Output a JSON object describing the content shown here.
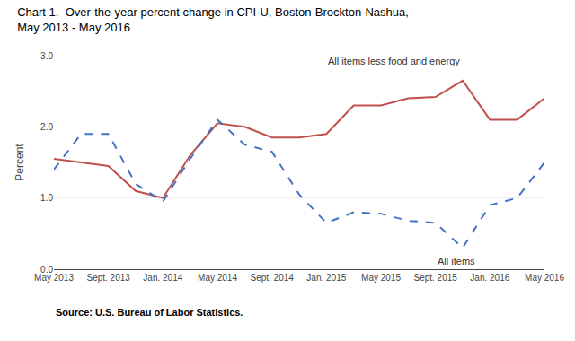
{
  "chart_data": {
    "type": "line",
    "title": "Chart 1.  Over-the-year percent change in CPI-U, Boston-Brockton-Nashua,",
    "subtitle": "May 2013 - May 2016",
    "ylabel": "Percent",
    "source": "Source: U.S. Bureau of Labor Statistics.",
    "categories": [
      "May 2013",
      null,
      "Sept. 2013",
      null,
      "Jan. 2014",
      null,
      "May 2014",
      null,
      "Sept. 2014",
      null,
      "Jan. 2015",
      null,
      "May 2015",
      null,
      "Sept. 2015",
      null,
      "Jan. 2016",
      null,
      "May 2016"
    ],
    "series": [
      {
        "name": "All items less food and energy",
        "color": "#C0504D",
        "line_style": "solid",
        "values": [
          1.55,
          1.5,
          1.45,
          1.1,
          1.0,
          1.6,
          2.05,
          2.0,
          1.85,
          1.85,
          1.9,
          2.3,
          2.3,
          2.4,
          2.42,
          2.65,
          2.1,
          2.1,
          2.4
        ]
      },
      {
        "name": "All items",
        "color": "#4472C4",
        "line_style": "dashed",
        "values": [
          1.4,
          1.9,
          1.9,
          1.2,
          0.95,
          1.55,
          2.1,
          1.75,
          1.65,
          1.05,
          0.65,
          0.8,
          0.78,
          0.68,
          0.65,
          0.3,
          0.9,
          1.0,
          1.5
        ]
      }
    ],
    "annotations": [
      {
        "text": "All items less food and energy",
        "x": "Jan. 2015",
        "y": 2.82,
        "anchor": "bottom"
      },
      {
        "text": "All items",
        "x": "Sept. 2015",
        "y": 0.22,
        "anchor": "top"
      }
    ],
    "ylim": [
      0.0,
      3.0
    ],
    "yticks": [
      {
        "value": 0.0,
        "label": "0.0"
      },
      {
        "value": 1.0,
        "label": "1.0"
      },
      {
        "value": 2.0,
        "label": "2.0"
      },
      {
        "value": 3.0,
        "label": "3.0"
      }
    ],
    "grid": true
  }
}
